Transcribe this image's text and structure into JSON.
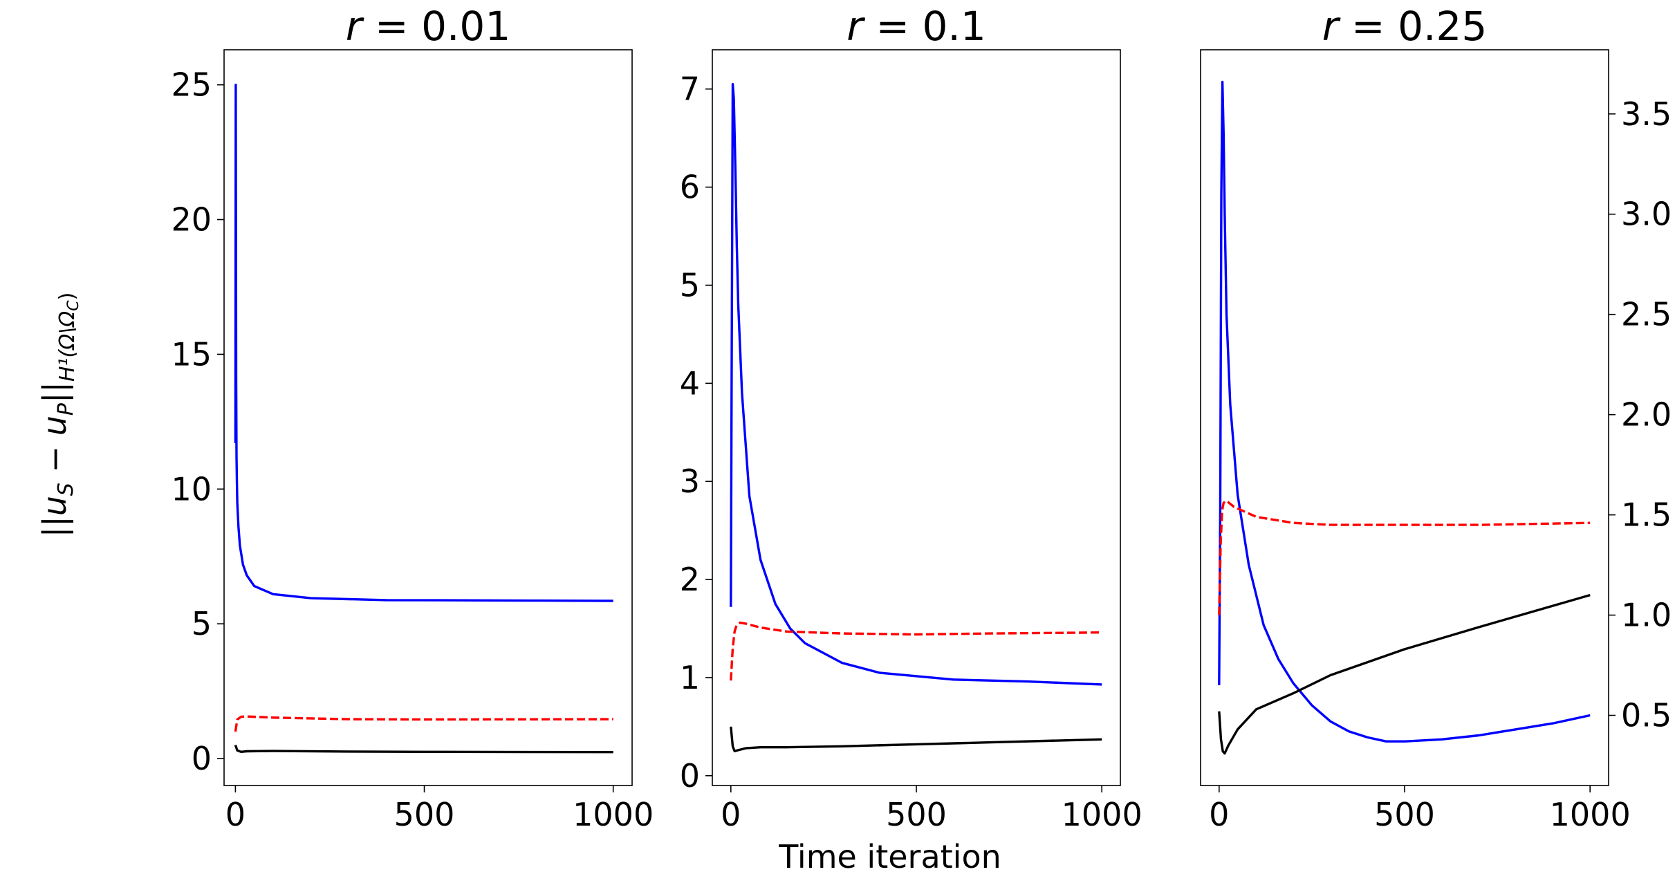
{
  "chart_data": {
    "type": "line",
    "xlabel": "Time iteration",
    "ylabel": "||u_S − u_P||_{H¹(Ω\\Ω_C)}",
    "ylabel_parts": {
      "main": "||u",
      "sub_s": "S",
      "minus": " − u",
      "sub_p": "P",
      "close": "||",
      "norm_sub": "H¹(Ω\\Ω",
      "norm_subsub": "C",
      "norm_end": ")"
    },
    "colors": {
      "blue": "#0000ff",
      "red": "#ff0000",
      "black": "#000000"
    },
    "panels": [
      {
        "title": "r = 0.01",
        "title_var": "r",
        "title_rest": " = 0.01",
        "xlim": [
          -30,
          1050
        ],
        "xticks": [
          0,
          500,
          1000
        ],
        "ylim": [
          -1.0,
          26.3
        ],
        "yticks": [
          0,
          5,
          10,
          15,
          20,
          25
        ],
        "series": [
          {
            "name": "blue",
            "style": "solid",
            "x": [
              0,
              1,
              2,
              3,
              4,
              5,
              8,
              12,
              20,
              30,
              50,
              100,
              200,
              400,
              600,
              800,
              1000
            ],
            "y": [
              11.7,
              25.0,
              14.0,
              11.2,
              10.2,
              9.5,
              8.6,
              7.9,
              7.2,
              6.8,
              6.4,
              6.1,
              5.95,
              5.88,
              5.87,
              5.86,
              5.85
            ]
          },
          {
            "name": "red",
            "style": "dashed",
            "x": [
              0,
              5,
              15,
              30,
              100,
              300,
              500,
              1000
            ],
            "y": [
              1.0,
              1.45,
              1.55,
              1.56,
              1.52,
              1.46,
              1.45,
              1.46
            ]
          },
          {
            "name": "black",
            "style": "solid",
            "x": [
              0,
              5,
              15,
              30,
              100,
              300,
              500,
              1000
            ],
            "y": [
              0.5,
              0.3,
              0.25,
              0.27,
              0.28,
              0.26,
              0.25,
              0.24
            ]
          }
        ]
      },
      {
        "title": "r = 0.1",
        "title_var": "r",
        "title_rest": " = 0.1",
        "xlim": [
          -50,
          1050
        ],
        "xticks": [
          0,
          500,
          1000
        ],
        "ylim": [
          -0.1,
          7.4
        ],
        "yticks": [
          0,
          1,
          2,
          3,
          4,
          5,
          6,
          7
        ],
        "series": [
          {
            "name": "blue",
            "style": "solid",
            "x": [
              0,
              2,
              5,
              8,
              12,
              16,
              20,
              30,
              50,
              80,
              120,
              160,
              200,
              300,
              400,
              600,
              800,
              1000
            ],
            "y": [
              1.72,
              4.0,
              7.05,
              6.9,
              6.2,
              5.4,
              4.8,
              3.9,
              2.85,
              2.2,
              1.75,
              1.5,
              1.35,
              1.15,
              1.05,
              0.98,
              0.96,
              0.93
            ]
          },
          {
            "name": "red",
            "style": "dashed",
            "x": [
              0,
              5,
              10,
              15,
              25,
              40,
              80,
              150,
              300,
              500,
              700,
              1000
            ],
            "y": [
              0.97,
              1.3,
              1.47,
              1.53,
              1.56,
              1.55,
              1.51,
              1.47,
              1.45,
              1.44,
              1.45,
              1.46
            ]
          },
          {
            "name": "black",
            "style": "solid",
            "x": [
              0,
              5,
              10,
              20,
              40,
              80,
              150,
              300,
              500,
              700,
              1000
            ],
            "y": [
              0.5,
              0.3,
              0.25,
              0.26,
              0.28,
              0.29,
              0.29,
              0.3,
              0.32,
              0.34,
              0.37
            ]
          }
        ]
      },
      {
        "title": "r = 0.25",
        "title_var": "r",
        "title_rest": " = 0.25",
        "xlim": [
          -50,
          1050
        ],
        "xticks": [
          0,
          500,
          1000
        ],
        "ylim": [
          0.15,
          3.82
        ],
        "yticks": [
          0.5,
          1.0,
          1.5,
          2.0,
          2.5,
          3.0,
          3.5
        ],
        "ytick_labels": [
          "0.5",
          "1.0",
          "1.5",
          "2.0",
          "2.5",
          "3.0",
          "3.5"
        ],
        "ytick_side": "right",
        "series": [
          {
            "name": "blue",
            "style": "solid",
            "x": [
              0,
              3,
              6,
              9,
              12,
              15,
              20,
              30,
              50,
              80,
              120,
              160,
              200,
              250,
              300,
              350,
              400,
              450,
              500,
              600,
              700,
              800,
              900,
              1000
            ],
            "y": [
              0.65,
              1.5,
              3.1,
              3.66,
              3.4,
              3.0,
              2.5,
              2.05,
              1.6,
              1.25,
              0.95,
              0.78,
              0.66,
              0.55,
              0.47,
              0.42,
              0.39,
              0.37,
              0.37,
              0.38,
              0.4,
              0.43,
              0.46,
              0.5
            ]
          },
          {
            "name": "red",
            "style": "dashed",
            "x": [
              0,
              4,
              8,
              12,
              20,
              40,
              100,
              200,
              300,
              500,
              700,
              1000
            ],
            "y": [
              1.0,
              1.35,
              1.52,
              1.56,
              1.57,
              1.54,
              1.49,
              1.46,
              1.45,
              1.45,
              1.45,
              1.46
            ]
          },
          {
            "name": "black",
            "style": "solid",
            "x": [
              0,
              5,
              10,
              15,
              25,
              50,
              100,
              200,
              300,
              500,
              700,
              1000
            ],
            "y": [
              0.52,
              0.38,
              0.32,
              0.31,
              0.35,
              0.43,
              0.53,
              0.61,
              0.7,
              0.83,
              0.94,
              1.1
            ]
          }
        ]
      }
    ]
  }
}
